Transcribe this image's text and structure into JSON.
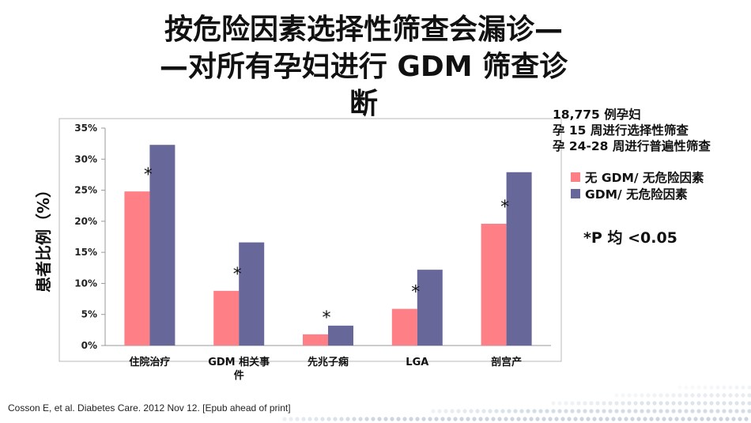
{
  "slide": {
    "title_lines": [
      "按危险因素选择性筛查会漏诊—",
      "—对所有孕妇进行 GDM 筛查诊",
      "断"
    ],
    "note_lines": [
      "18,775 例孕妇",
      "孕 15 周进行选择性筛查",
      "孕 24-28 周进行普遍性筛查"
    ],
    "p_note": "*P 均 <0.05",
    "citation": "Cosson E, et al. Diabetes Care. 2012 Nov 12. [Epub ahead of print]"
  },
  "chart_data": {
    "type": "bar",
    "categories": [
      "住院治疗",
      "GDM 相关事件",
      "先兆子痫",
      "LGA",
      "剖宫产"
    ],
    "series": [
      {
        "name": "无 GDM/ 无危险因素",
        "values": [
          24.8,
          8.8,
          1.8,
          5.9,
          19.6
        ],
        "color": "#ff7f86"
      },
      {
        "name": "GDM/ 无危险因素",
        "values": [
          32.3,
          16.6,
          3.2,
          12.2,
          27.9
        ],
        "color": "#67679a"
      }
    ],
    "significance_marks": [
      "*",
      "*",
      "*",
      "*",
      "*"
    ],
    "ylabel": "患者比例（%）",
    "xlabel": "",
    "ylim": [
      0,
      35
    ],
    "yticks": [
      "0%",
      "5%",
      "10%",
      "15%",
      "20%",
      "25%",
      "30%",
      "35%"
    ],
    "grid": false,
    "legend_position": "right"
  }
}
